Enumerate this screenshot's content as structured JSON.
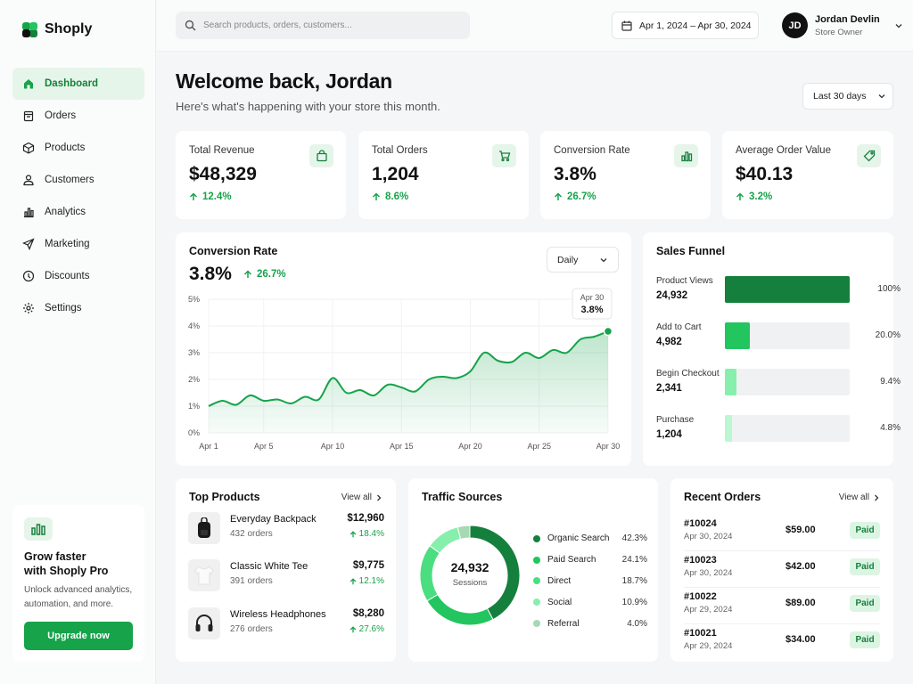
{
  "brand": {
    "name": "Shoply",
    "accent": "#16a34a"
  },
  "sidebar": {
    "items": [
      {
        "label": "Dashboard",
        "icon": "home-icon",
        "active": true
      },
      {
        "label": "Orders",
        "icon": "orders-icon"
      },
      {
        "label": "Products",
        "icon": "box-icon"
      },
      {
        "label": "Customers",
        "icon": "user-icon"
      },
      {
        "label": "Analytics",
        "icon": "bar-chart-icon"
      },
      {
        "label": "Marketing",
        "icon": "send-icon"
      },
      {
        "label": "Discounts",
        "icon": "discount-icon"
      },
      {
        "label": "Settings",
        "icon": "gear-icon"
      }
    ],
    "promo": {
      "title_line1": "Grow faster",
      "title_line2": "with Shoply Pro",
      "text_line1": "Unlock advanced analytics,",
      "text_line2": "automation, and more.",
      "button": "Upgrade now"
    }
  },
  "topbar": {
    "search_placeholder": "Search products, orders, customers...",
    "date_range": "Apr 1, 2024 – Apr 30, 2024",
    "user": {
      "initials": "JD",
      "name": "Jordan Devlin",
      "role": "Store Owner"
    }
  },
  "header": {
    "title": "Welcome back, Jordan",
    "subtitle": "Here's what's happening with your store this month.",
    "range": "Last 30 days"
  },
  "kpis": [
    {
      "label": "Total Revenue",
      "value": "$48,329",
      "change": "12.4%",
      "icon": "shopping-bag-icon"
    },
    {
      "label": "Total Orders",
      "value": "1,204",
      "change": "8.6%",
      "icon": "cart-icon"
    },
    {
      "label": "Conversion Rate",
      "value": "3.8%",
      "change": "26.7%",
      "icon": "bar-chart-icon"
    },
    {
      "label": "Average Order Value",
      "value": "$40.13",
      "change": "3.2%",
      "icon": "tag-icon"
    }
  ],
  "conversion": {
    "title": "Conversion Rate",
    "value": "3.8%",
    "change": "26.7%",
    "interval": "Daily",
    "tooltip": {
      "date": "Apr 30",
      "value": "3.8%"
    }
  },
  "chart_data": {
    "type": "area",
    "title": "Conversion Rate",
    "xlabel": "",
    "ylabel": "",
    "ylim": [
      0,
      5
    ],
    "yticks": [
      "0%",
      "1%",
      "2%",
      "3%",
      "4%",
      "5%"
    ],
    "xticks": [
      "Apr 1",
      "Apr 5",
      "Apr 10",
      "Apr 15",
      "Apr 20",
      "Apr 25",
      "Apr 30"
    ],
    "grid": true,
    "x": [
      1,
      2,
      3,
      4,
      5,
      6,
      7,
      8,
      9,
      10,
      11,
      12,
      13,
      14,
      15,
      16,
      17,
      18,
      19,
      20,
      21,
      22,
      23,
      24,
      25,
      26,
      27,
      28,
      29,
      30
    ],
    "series": [
      {
        "values": [
          1.0,
          1.2,
          1.05,
          1.4,
          1.2,
          1.25,
          1.1,
          1.35,
          1.25,
          2.05,
          1.5,
          1.6,
          1.4,
          1.8,
          1.7,
          1.55,
          2.0,
          2.1,
          2.05,
          2.3,
          3.0,
          2.7,
          2.65,
          3.0,
          2.8,
          3.1,
          3.0,
          3.5,
          3.6,
          3.8
        ]
      }
    ],
    "color": "#16a34a"
  },
  "funnel": {
    "title": "Sales Funnel",
    "stages": [
      {
        "label": "Product Views",
        "value": "24,932",
        "pct": "100%",
        "fraction": 1.0,
        "color": "#15803d"
      },
      {
        "label": "Add to Cart",
        "value": "4,982",
        "pct": "20.0%",
        "fraction": 0.2,
        "color": "#22c55e"
      },
      {
        "label": "Begin Checkout",
        "value": "2,341",
        "pct": "9.4%",
        "fraction": 0.094,
        "color": "#86efac"
      },
      {
        "label": "Purchase",
        "value": "1,204",
        "pct": "4.8%",
        "fraction": 0.048,
        "color": "#bbf7d0"
      }
    ]
  },
  "top_products": {
    "title": "Top Products",
    "view_all": "View all",
    "items": [
      {
        "name": "Everyday Backpack",
        "orders": "432 orders",
        "revenue": "$12,960",
        "change": "18.4%",
        "icon": "backpack-icon"
      },
      {
        "name": "Classic White Tee",
        "orders": "391 orders",
        "revenue": "$9,775",
        "change": "12.1%",
        "icon": "tshirt-icon"
      },
      {
        "name": "Wireless Headphones",
        "orders": "276 orders",
        "revenue": "$8,280",
        "change": "27.6%",
        "icon": "headphones-icon"
      }
    ]
  },
  "traffic": {
    "title": "Traffic Sources",
    "total": "24,932",
    "total_label": "Sessions",
    "sources": [
      {
        "name": "Organic Search",
        "pct": "42.3%",
        "value": 42.3,
        "color": "#15803d"
      },
      {
        "name": "Paid Search",
        "pct": "24.1%",
        "value": 24.1,
        "color": "#22c55e"
      },
      {
        "name": "Direct",
        "pct": "18.7%",
        "value": 18.7,
        "color": "#4ade80"
      },
      {
        "name": "Social",
        "pct": "10.9%",
        "value": 10.9,
        "color": "#86efac"
      },
      {
        "name": "Referral",
        "pct": "4.0%",
        "value": 4.0,
        "color": "#a7d8b4"
      }
    ]
  },
  "recent_orders": {
    "title": "Recent Orders",
    "view_all": "View all",
    "items": [
      {
        "id": "#10024",
        "date": "Apr 30, 2024",
        "amount": "$59.00",
        "status": "Paid"
      },
      {
        "id": "#10023",
        "date": "Apr 30, 2024",
        "amount": "$42.00",
        "status": "Paid"
      },
      {
        "id": "#10022",
        "date": "Apr 29, 2024",
        "amount": "$89.00",
        "status": "Paid"
      },
      {
        "id": "#10021",
        "date": "Apr 29, 2024",
        "amount": "$34.00",
        "status": "Paid"
      }
    ]
  }
}
